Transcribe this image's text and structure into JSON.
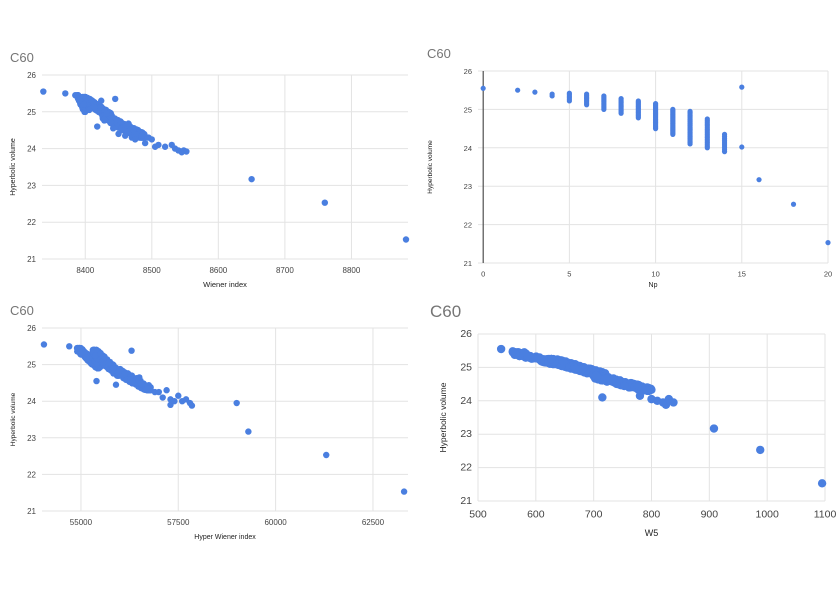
{
  "chart_data": [
    {
      "type": "scatter",
      "title": "C60",
      "xlabel": "Wiener index",
      "ylabel": "Hyperbolic volume",
      "xlim": [
        8335,
        8885
      ],
      "ylim": [
        21,
        26
      ],
      "xticks": [
        8400,
        8500,
        8600,
        8700,
        8800
      ],
      "yticks": [
        21,
        22,
        23,
        24,
        25,
        26
      ],
      "grid": true,
      "color": "#4a7fe0",
      "marker_size": 3.2,
      "points": [
        [
          8337,
          25.55
        ],
        [
          8370,
          25.5
        ],
        [
          8385,
          25.45
        ],
        [
          8392,
          25.32
        ],
        [
          8398,
          25.2
        ],
        [
          8402,
          25.38
        ],
        [
          8406,
          25.05
        ],
        [
          8410,
          25.3
        ],
        [
          8414,
          25.12
        ],
        [
          8418,
          24.6
        ],
        [
          8424,
          25.3
        ],
        [
          8428,
          24.8
        ],
        [
          8432,
          24.95
        ],
        [
          8438,
          24.72
        ],
        [
          8442,
          24.55
        ],
        [
          8445,
          25.35
        ],
        [
          8450,
          24.4
        ],
        [
          8455,
          24.5
        ],
        [
          8460,
          24.35
        ],
        [
          8465,
          24.68
        ],
        [
          8470,
          24.3
        ],
        [
          8475,
          24.25
        ],
        [
          8485,
          24.35
        ],
        [
          8490,
          24.15
        ],
        [
          8495,
          24.3
        ],
        [
          8500,
          24.25
        ],
        [
          8505,
          24.05
        ],
        [
          8510,
          24.1
        ],
        [
          8520,
          24.05
        ],
        [
          8530,
          24.1
        ],
        [
          8535,
          24.0
        ],
        [
          8540,
          23.95
        ],
        [
          8545,
          23.9
        ],
        [
          8548,
          23.95
        ],
        [
          8552,
          23.92
        ],
        [
          8650,
          23.17
        ],
        [
          8760,
          22.53
        ],
        [
          8882,
          21.53
        ]
      ],
      "bands": [
        {
          "x": [
            8388,
            8400
          ],
          "y": [
            25.0,
            25.45
          ],
          "n": 40
        },
        {
          "x": [
            8395,
            8440
          ],
          "y": [
            24.85,
            25.4
          ],
          "n": 280
        },
        {
          "x": [
            8425,
            8490
          ],
          "y": [
            24.3,
            24.9
          ],
          "n": 160
        }
      ]
    },
    {
      "type": "scatter",
      "title": "C60",
      "xlabel": "Np",
      "ylabel": "Hyperbolic volume",
      "xlim": [
        -0.3,
        20
      ],
      "ylim": [
        21,
        26
      ],
      "xticks": [
        0,
        5,
        10,
        15,
        20
      ],
      "yticks": [
        21,
        22,
        23,
        24,
        25,
        26
      ],
      "grid": true,
      "color": "#4a7fe0",
      "marker_size": 2.6,
      "points": [
        [
          0,
          25.55
        ],
        [
          2,
          25.5
        ],
        [
          3,
          25.45
        ],
        [
          4,
          25.4
        ],
        [
          4,
          25.35
        ],
        [
          15,
          25.58
        ],
        [
          15,
          24.02
        ],
        [
          16,
          23.17
        ],
        [
          18,
          22.53
        ],
        [
          20,
          21.53
        ]
      ],
      "columns": [
        {
          "x": 5,
          "y": [
            25.22,
            25.42
          ],
          "n": 6
        },
        {
          "x": 6,
          "y": [
            25.12,
            25.4
          ],
          "n": 8
        },
        {
          "x": 7,
          "y": [
            25.0,
            25.35
          ],
          "n": 10
        },
        {
          "x": 8,
          "y": [
            24.9,
            25.28
          ],
          "n": 12
        },
        {
          "x": 9,
          "y": [
            24.78,
            25.22
          ],
          "n": 14
        },
        {
          "x": 10,
          "y": [
            24.5,
            25.15
          ],
          "n": 22
        },
        {
          "x": 11,
          "y": [
            24.35,
            25.0
          ],
          "n": 22
        },
        {
          "x": 12,
          "y": [
            24.1,
            24.95
          ],
          "n": 26
        },
        {
          "x": 13,
          "y": [
            24.0,
            24.75
          ],
          "n": 18
        },
        {
          "x": 14,
          "y": [
            23.9,
            24.35
          ],
          "n": 10
        }
      ]
    },
    {
      "type": "scatter",
      "title": "C60",
      "xlabel": "Hyper Wiener index",
      "ylabel": "Hyperbolic volume",
      "xlim": [
        54000,
        63400
      ],
      "ylim": [
        21,
        26
      ],
      "xticks": [
        55000,
        57500,
        60000,
        62500
      ],
      "yticks": [
        21,
        22,
        23,
        24,
        25,
        26
      ],
      "grid": true,
      "color": "#4a7fe0",
      "marker_size": 3.2,
      "points": [
        [
          54050,
          25.55
        ],
        [
          54700,
          25.5
        ],
        [
          55000,
          25.45
        ],
        [
          55400,
          24.55
        ],
        [
          55900,
          24.45
        ],
        [
          56300,
          25.38
        ],
        [
          56500,
          24.65
        ],
        [
          56700,
          24.35
        ],
        [
          56900,
          24.25
        ],
        [
          57000,
          24.25
        ],
        [
          57100,
          24.1
        ],
        [
          57200,
          24.3
        ],
        [
          57300,
          24.05
        ],
        [
          57400,
          24.0
        ],
        [
          57500,
          24.15
        ],
        [
          57600,
          24.0
        ],
        [
          57700,
          24.05
        ],
        [
          57800,
          23.95
        ],
        [
          57850,
          23.88
        ],
        [
          57300,
          23.9
        ],
        [
          59000,
          23.95
        ],
        [
          59300,
          23.17
        ],
        [
          61300,
          22.53
        ],
        [
          63300,
          21.53
        ]
      ],
      "bands": [
        {
          "x": [
            54900,
            55500
          ],
          "y": [
            24.9,
            25.45
          ],
          "n": 200
        },
        {
          "x": [
            55300,
            56000
          ],
          "y": [
            24.7,
            25.4
          ],
          "n": 180
        },
        {
          "x": [
            55800,
            56800
          ],
          "y": [
            24.3,
            24.9
          ],
          "n": 140
        }
      ]
    },
    {
      "type": "scatter",
      "title": "C60",
      "xlabel": "W5",
      "ylabel": "Hyperbolic volume",
      "xlim": [
        500,
        1100
      ],
      "ylim": [
        21,
        26
      ],
      "xticks": [
        500,
        600,
        700,
        800,
        900,
        1000,
        1100
      ],
      "yticks": [
        21,
        22,
        23,
        24,
        25,
        26
      ],
      "grid": true,
      "color": "#4a7fe0",
      "marker_size": 4.2,
      "points": [
        [
          540,
          25.55
        ],
        [
          560,
          25.48
        ],
        [
          580,
          25.45
        ],
        [
          715,
          24.1
        ],
        [
          780,
          24.15
        ],
        [
          800,
          24.05
        ],
        [
          810,
          24.0
        ],
        [
          820,
          23.95
        ],
        [
          825,
          23.88
        ],
        [
          830,
          24.05
        ],
        [
          838,
          23.95
        ],
        [
          908,
          23.17
        ],
        [
          988,
          22.53
        ],
        [
          1095,
          21.53
        ]
      ],
      "bands": [
        {
          "x": [
            560,
            640
          ],
          "y": [
            25.1,
            25.45
          ],
          "n": 120
        },
        {
          "x": [
            620,
            720
          ],
          "y": [
            24.75,
            25.25
          ],
          "n": 220
        },
        {
          "x": [
            700,
            800
          ],
          "y": [
            24.3,
            24.75
          ],
          "n": 160
        }
      ]
    }
  ]
}
